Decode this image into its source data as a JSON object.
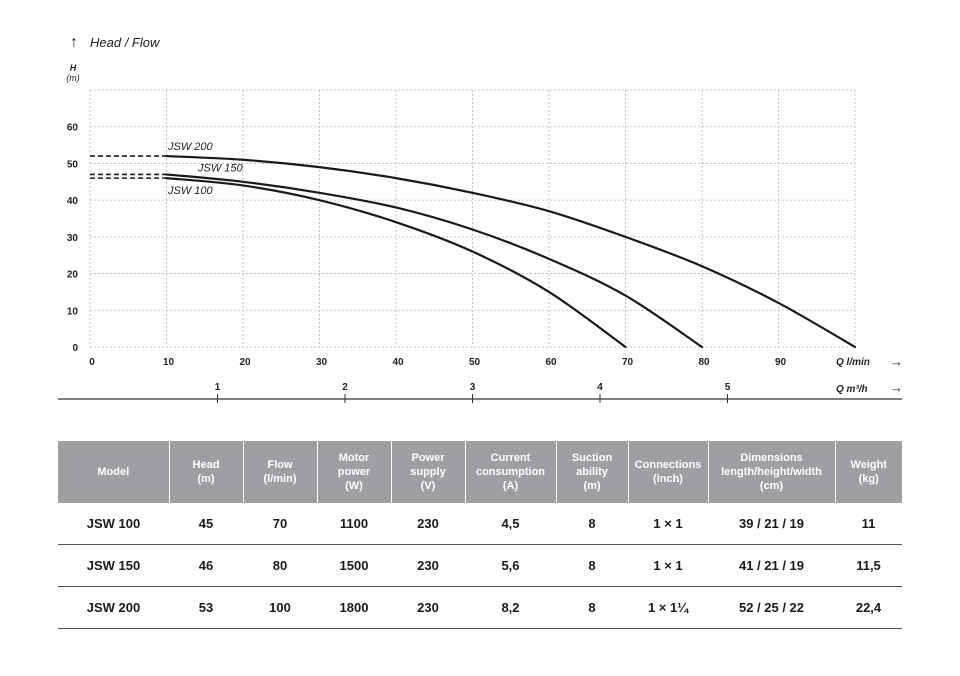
{
  "chart_data": {
    "type": "line",
    "title": "Head / Flow",
    "ylabel": "H",
    "yunit": "(m)",
    "xlabel": "Q l/min",
    "x2label": "Q m³/h",
    "xlim": [
      0,
      100
    ],
    "ylim": [
      0,
      70
    ],
    "xticks": [
      0,
      10,
      20,
      30,
      40,
      50,
      60,
      70,
      80,
      90
    ],
    "yticks": [
      0,
      10,
      20,
      30,
      40,
      50,
      60
    ],
    "x2ticks": [
      1,
      2,
      3,
      4,
      5
    ],
    "grid": true,
    "series": [
      {
        "name": "JSW 200",
        "dashed_until": 10,
        "x": [
          0,
          10,
          20,
          30,
          40,
          50,
          60,
          70,
          80,
          90,
          100
        ],
        "y": [
          52,
          52,
          51,
          49,
          46,
          42,
          37,
          30,
          22,
          12,
          0
        ]
      },
      {
        "name": "JSW 150",
        "dashed_until": 10,
        "x": [
          0,
          10,
          20,
          30,
          40,
          50,
          60,
          70,
          80
        ],
        "y": [
          47,
          47,
          45,
          42,
          38,
          32,
          24,
          14,
          0
        ]
      },
      {
        "name": "JSW 100",
        "dashed_until": 10,
        "x": [
          0,
          10,
          20,
          30,
          40,
          50,
          60,
          70
        ],
        "y": [
          46,
          46,
          44,
          40,
          34,
          26,
          15,
          0
        ]
      }
    ]
  },
  "table": {
    "headers": [
      "Model",
      "Head\n(m)",
      "Flow\n(l/min)",
      "Motor\npower\n(W)",
      "Power\nsupply\n(V)",
      "Current\nconsumption\n(A)",
      "Suction\nability\n(m)",
      "Connections\n(inch)",
      "Dimensions\nlength/height/width\n(cm)",
      "Weight\n(kg)"
    ],
    "rows": [
      [
        "JSW 100",
        "45",
        "70",
        "1100",
        "230",
        "4,5",
        "8",
        "1 × 1",
        "39 / 21 / 19",
        "11"
      ],
      [
        "JSW 150",
        "46",
        "80",
        "1500",
        "230",
        "5,6",
        "8",
        "1 × 1",
        "41 / 21 / 19",
        "11,5"
      ],
      [
        "JSW 200",
        "53",
        "100",
        "1800",
        "230",
        "8,2",
        "8",
        "1 × 1¼",
        "52 / 25 / 22",
        "22,4"
      ]
    ]
  },
  "colors": {
    "header_bg": "#9d9fa2",
    "grid": "#b5b5b5",
    "curve": "#1a1a1a"
  }
}
